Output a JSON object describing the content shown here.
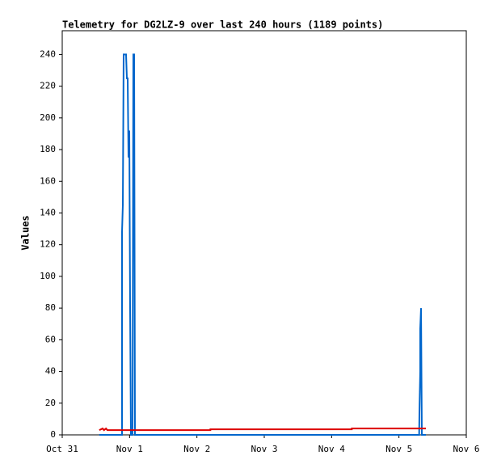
{
  "chart_data": {
    "type": "line",
    "title": "Telemetry for DG2LZ-9 over last 240 hours (1189 points)",
    "y_label": "Values",
    "xlim": [
      0,
      6
    ],
    "xticks": [
      {
        "value": 0,
        "label": "Oct 31"
      },
      {
        "value": 1,
        "label": "Nov 1"
      },
      {
        "value": 2,
        "label": "Nov 2"
      },
      {
        "value": 3,
        "label": "Nov 3"
      },
      {
        "value": 4,
        "label": "Nov 4"
      },
      {
        "value": 5,
        "label": "Nov 5"
      },
      {
        "value": 6,
        "label": "Nov 6"
      }
    ],
    "ylim": [
      0,
      255
    ],
    "yticks": [
      0,
      20,
      40,
      60,
      80,
      100,
      120,
      140,
      160,
      180,
      200,
      220,
      240
    ],
    "series": [
      {
        "color": "#0066cc",
        "x": [
          0.55,
          0.888,
          0.888,
          0.9,
          0.912,
          0.948,
          0.96,
          0.972,
          0.984,
          0.996,
          1.008,
          1.02,
          1.044,
          1.056,
          1.068,
          1.08,
          5.3,
          5.304,
          5.316,
          5.316,
          5.328,
          5.34,
          5.4
        ],
        "values": [
          0,
          0,
          128,
          145,
          240,
          240,
          225,
          225,
          175,
          192,
          80,
          0,
          0,
          240,
          240,
          0,
          0,
          14,
          40,
          67,
          80,
          0,
          0
        ]
      },
      {
        "color": "#dd0000",
        "x": [
          0.55,
          0.6,
          0.62,
          0.65,
          0.67,
          2.2,
          2.2,
          4.3,
          4.3,
          5.4
        ],
        "values": [
          3,
          4,
          3,
          4,
          3,
          3,
          3.5,
          3.5,
          4,
          4
        ]
      }
    ]
  }
}
